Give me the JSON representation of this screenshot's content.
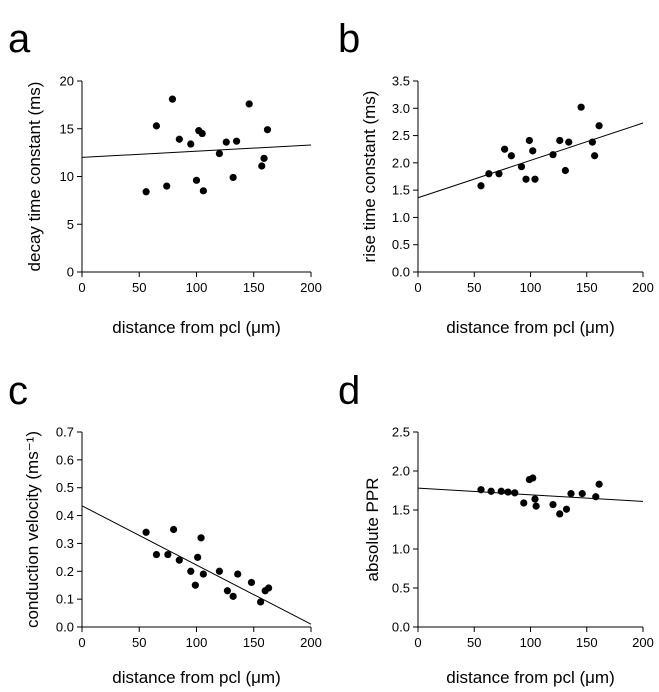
{
  "chart_data": [
    {
      "panel": "a",
      "type": "scatter",
      "xlabel": "distance from pcl (μm)",
      "ylabel": "decay time constant (ms)",
      "xlim": [
        0,
        200
      ],
      "ylim": [
        0,
        20
      ],
      "xticks": [
        "0",
        "50",
        "100",
        "150",
        "200"
      ],
      "yticks": [
        "0",
        "5",
        "10",
        "15",
        "20"
      ],
      "points": [
        {
          "x": 56,
          "y": 8.4
        },
        {
          "x": 65,
          "y": 15.3
        },
        {
          "x": 74,
          "y": 9.0
        },
        {
          "x": 79,
          "y": 18.1
        },
        {
          "x": 85,
          "y": 13.9
        },
        {
          "x": 95,
          "y": 13.4
        },
        {
          "x": 100,
          "y": 9.6
        },
        {
          "x": 102,
          "y": 14.8
        },
        {
          "x": 105,
          "y": 14.5
        },
        {
          "x": 106,
          "y": 8.5
        },
        {
          "x": 120,
          "y": 12.4
        },
        {
          "x": 126,
          "y": 13.6
        },
        {
          "x": 132,
          "y": 9.9
        },
        {
          "x": 135,
          "y": 13.7
        },
        {
          "x": 146,
          "y": 17.6
        },
        {
          "x": 157,
          "y": 11.1
        },
        {
          "x": 159,
          "y": 11.9
        },
        {
          "x": 162,
          "y": 14.9
        }
      ],
      "fit_line": [
        [
          0,
          12.0
        ],
        [
          200,
          13.3
        ]
      ]
    },
    {
      "panel": "b",
      "type": "scatter",
      "xlabel": "distance from pcl (μm)",
      "ylabel": "rise time constant (ms)",
      "xlim": [
        0,
        200
      ],
      "ylim": [
        0,
        3.5
      ],
      "xticks": [
        "0",
        "50",
        "100",
        "150",
        "200"
      ],
      "yticks": [
        "0.0",
        "0.5",
        "1.0",
        "1.5",
        "2.0",
        "2.5",
        "3.0",
        "3.5"
      ],
      "points": [
        {
          "x": 56,
          "y": 1.58
        },
        {
          "x": 63,
          "y": 1.8
        },
        {
          "x": 72,
          "y": 1.8
        },
        {
          "x": 77,
          "y": 2.25
        },
        {
          "x": 83,
          "y": 2.13
        },
        {
          "x": 92,
          "y": 1.93
        },
        {
          "x": 96,
          "y": 1.7
        },
        {
          "x": 99,
          "y": 2.41
        },
        {
          "x": 102,
          "y": 2.22
        },
        {
          "x": 104,
          "y": 1.7
        },
        {
          "x": 120,
          "y": 2.15
        },
        {
          "x": 126,
          "y": 2.41
        },
        {
          "x": 131,
          "y": 1.86
        },
        {
          "x": 134,
          "y": 2.38
        },
        {
          "x": 145,
          "y": 3.02
        },
        {
          "x": 155,
          "y": 2.38
        },
        {
          "x": 157,
          "y": 2.13
        },
        {
          "x": 161,
          "y": 2.68
        }
      ],
      "fit_line": [
        [
          0,
          1.36
        ],
        [
          200,
          2.73
        ]
      ]
    },
    {
      "panel": "c",
      "type": "scatter",
      "xlabel": "distance from pcl (μm)",
      "ylabel": "conduction  velocity (ms⁻¹)",
      "xlim": [
        0,
        200
      ],
      "ylim": [
        0,
        0.7
      ],
      "xticks": [
        "0",
        "50",
        "100",
        "150",
        "200"
      ],
      "yticks": [
        "0.0",
        "0.1",
        "0.2",
        "0.3",
        "0.4",
        "0.5",
        "0.6",
        "0.7"
      ],
      "points": [
        {
          "x": 56,
          "y": 0.34
        },
        {
          "x": 65,
          "y": 0.26
        },
        {
          "x": 75,
          "y": 0.26
        },
        {
          "x": 80,
          "y": 0.35
        },
        {
          "x": 85,
          "y": 0.24
        },
        {
          "x": 95,
          "y": 0.2
        },
        {
          "x": 99,
          "y": 0.15
        },
        {
          "x": 101,
          "y": 0.25
        },
        {
          "x": 104,
          "y": 0.32
        },
        {
          "x": 106,
          "y": 0.19
        },
        {
          "x": 120,
          "y": 0.2
        },
        {
          "x": 127,
          "y": 0.13
        },
        {
          "x": 132,
          "y": 0.11
        },
        {
          "x": 136,
          "y": 0.19
        },
        {
          "x": 148,
          "y": 0.16
        },
        {
          "x": 156,
          "y": 0.09
        },
        {
          "x": 160,
          "y": 0.13
        },
        {
          "x": 163,
          "y": 0.14
        }
      ],
      "fit_line": [
        [
          0,
          0.435
        ],
        [
          200,
          0.01
        ]
      ]
    },
    {
      "panel": "d",
      "type": "scatter",
      "xlabel": "distance from pcl (μm)",
      "ylabel": "absolute PPR",
      "xlim": [
        0,
        200
      ],
      "ylim": [
        0,
        2.5
      ],
      "xticks": [
        "0",
        "50",
        "100",
        "150",
        "200"
      ],
      "yticks": [
        "0.0",
        "0.5",
        "1.0",
        "1.5",
        "2.0",
        "2.5"
      ],
      "points": [
        {
          "x": 56,
          "y": 1.76
        },
        {
          "x": 65,
          "y": 1.74
        },
        {
          "x": 74,
          "y": 1.74
        },
        {
          "x": 80,
          "y": 1.73
        },
        {
          "x": 86,
          "y": 1.72
        },
        {
          "x": 94,
          "y": 1.59
        },
        {
          "x": 99,
          "y": 1.89
        },
        {
          "x": 102,
          "y": 1.91
        },
        {
          "x": 104,
          "y": 1.64
        },
        {
          "x": 105,
          "y": 1.55
        },
        {
          "x": 120,
          "y": 1.57
        },
        {
          "x": 126,
          "y": 1.45
        },
        {
          "x": 132,
          "y": 1.51
        },
        {
          "x": 136,
          "y": 1.71
        },
        {
          "x": 146,
          "y": 1.71
        },
        {
          "x": 158,
          "y": 1.67
        },
        {
          "x": 161,
          "y": 1.83
        }
      ],
      "fit_line": [
        [
          0,
          1.78
        ],
        [
          200,
          1.61
        ]
      ]
    }
  ]
}
